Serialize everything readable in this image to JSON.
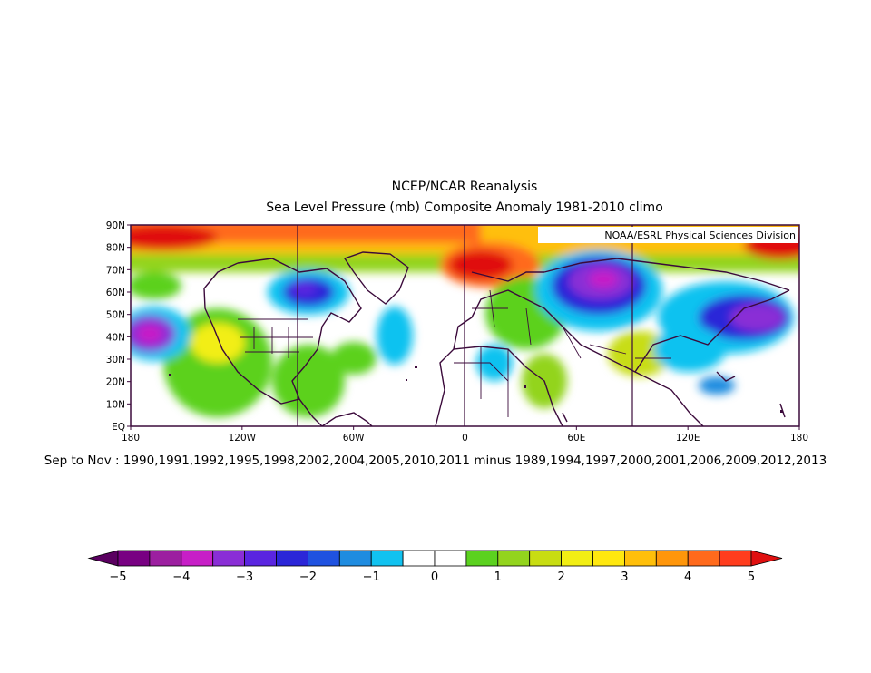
{
  "title": {
    "line1": "NCEP/NCAR Reanalysis",
    "line2": "Sea Level Pressure (mb) Composite Anomaly 1981-2010 climo"
  },
  "credit": "NOAA/ESRL Physical Sciences Division",
  "subtitle": "Sep to Nov : 1990,1991,1992,1995,1998,2002,2004,2005,2010,2011 minus 1989,1994,1997,2000,2001,2006,2009,2012,2013",
  "map": {
    "lon_range": [
      -180,
      180
    ],
    "lat_range": [
      0,
      90
    ],
    "lat_ticks": [
      "90N",
      "80N",
      "70N",
      "60N",
      "50N",
      "40N",
      "30N",
      "20N",
      "10N",
      "EQ"
    ],
    "lon_ticks": [
      "180",
      "120W",
      "60W",
      "0",
      "60E",
      "120E",
      "180"
    ],
    "meridians_drawn": [
      -90,
      0,
      90
    ]
  },
  "colorbar": {
    "labels": [
      "-5",
      "-4",
      "-3",
      "-2",
      "-1",
      "0",
      "1",
      "2",
      "3",
      "4",
      "5"
    ],
    "colors": [
      "#780082",
      "#9c1fa0",
      "#c71fc7",
      "#8a2ed6",
      "#5a25e0",
      "#2b26d8",
      "#1f52e0",
      "#1f8ce0",
      "#11c2f0",
      "#ffffff",
      "#ffffff",
      "#5bd11f",
      "#93d41d",
      "#c8dd12",
      "#f2ee14",
      "#ffe80f",
      "#ffbf0a",
      "#ff960b",
      "#ff6a1c",
      "#ff3d1d"
    ],
    "low_cap": "#5a0060",
    "high_cap": "#e01010"
  }
}
